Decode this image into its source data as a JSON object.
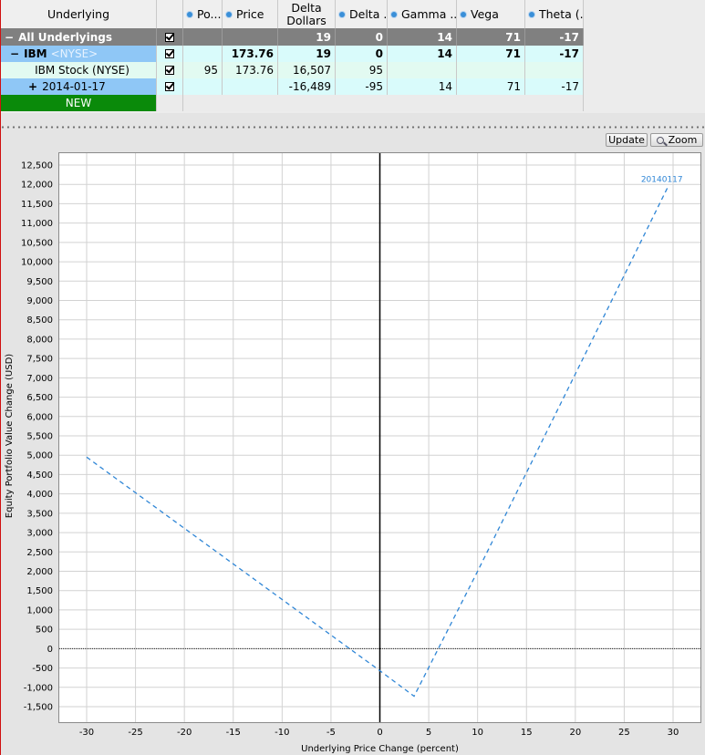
{
  "grid": {
    "columns": [
      {
        "key": "underlying",
        "label": "Underlying",
        "dot": false
      },
      {
        "key": "check",
        "label": "",
        "dot": false
      },
      {
        "key": "pos",
        "label": "Po...",
        "dot": true
      },
      {
        "key": "price",
        "label": "Price",
        "dot": true
      },
      {
        "key": "delta_dollars",
        "label": "Delta Dollars",
        "dot": false
      },
      {
        "key": "delta",
        "label": "Delta ...",
        "dot": true
      },
      {
        "key": "gamma",
        "label": "Gamma ...",
        "dot": true
      },
      {
        "key": "vega",
        "label": "Vega",
        "dot": true
      },
      {
        "key": "theta",
        "label": "Theta (...",
        "dot": true
      }
    ],
    "rows": {
      "all": {
        "toggle": "−",
        "name": "All Underlyings",
        "pos": "",
        "price": "",
        "delta_dollars": "19",
        "delta": "0",
        "gamma": "14",
        "vega": "71",
        "theta": "-17"
      },
      "ibm": {
        "toggle": "−",
        "name": "IBM",
        "exchange": "<NYSE>",
        "pos": "",
        "price": "173.76",
        "delta_dollars": "19",
        "delta": "0",
        "gamma": "14",
        "vega": "71",
        "theta": "-17"
      },
      "stock": {
        "name": "IBM Stock (NYSE)",
        "pos": "95",
        "price": "173.76",
        "delta_dollars": "16,507",
        "delta": "95",
        "gamma": "",
        "vega": "",
        "theta": ""
      },
      "expiry": {
        "toggle": "+",
        "name": "2014-01-17",
        "pos": "",
        "price": "",
        "delta_dollars": "-16,489",
        "delta": "-95",
        "gamma": "14",
        "vega": "71",
        "theta": "-17"
      },
      "new": {
        "label": "NEW"
      }
    }
  },
  "toolbar": {
    "update_label": "Update",
    "zoom_label": "Zoom"
  },
  "colors": {
    "series": "#2f86d6",
    "new_row": "#0a8a0a",
    "ibm_selected": "#8fc7f6",
    "header_bg": "#808080"
  },
  "chart_data": {
    "type": "line",
    "xlabel": "Underlying Price Change (percent)",
    "ylabel": "Equity Portfolio Value Change (USD)",
    "xlim": [
      -30,
      30
    ],
    "ylim": [
      -1500,
      12500
    ],
    "x_ticks": [
      -30,
      -25,
      -20,
      -15,
      -10,
      -5,
      0,
      5,
      10,
      15,
      20,
      25,
      30
    ],
    "y_ticks": [
      -1500,
      -1000,
      -500,
      0,
      500,
      1000,
      1500,
      2000,
      2500,
      3000,
      3500,
      4000,
      4500,
      5000,
      5500,
      6000,
      6500,
      7000,
      7500,
      8000,
      8500,
      9000,
      9500,
      10000,
      10500,
      11000,
      11500,
      12000,
      12500
    ],
    "y_tick_labels": [
      "-1,500",
      "-1,000",
      "-500",
      "0",
      "500",
      "1,000",
      "1,500",
      "2,000",
      "2,500",
      "3,000",
      "3,500",
      "4,000",
      "4,500",
      "5,000",
      "5,500",
      "6,000",
      "6,500",
      "7,000",
      "7,500",
      "8,000",
      "8,500",
      "9,000",
      "9,500",
      "10,000",
      "10,500",
      "11,000",
      "11,500",
      "12,000",
      "12,500"
    ],
    "grid": true,
    "series": [
      {
        "name": "20140117",
        "style": "dashed",
        "x": [
          -30,
          0,
          3.5,
          6,
          10,
          15,
          20,
          25,
          29.5
        ],
        "y": [
          4950,
          -570,
          -1230,
          10,
          2000,
          4550,
          7100,
          9650,
          11950
        ]
      }
    ]
  }
}
